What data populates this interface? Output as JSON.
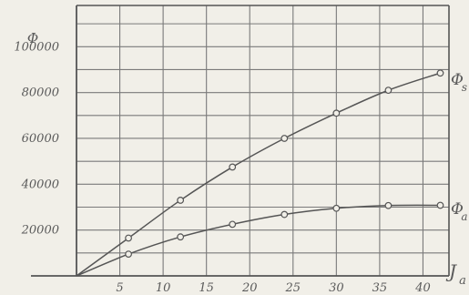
{
  "chart_data": {
    "type": "line",
    "title": "",
    "ylabel": "Φ",
    "xlabel": "J",
    "xlabel_sub": "a",
    "xlim": [
      0,
      43
    ],
    "ylim": [
      0,
      118000
    ],
    "x_ticks": [
      5,
      10,
      15,
      20,
      25,
      30,
      35,
      40
    ],
    "y_ticks": [
      20000,
      40000,
      60000,
      80000,
      100000
    ],
    "x_tick_labels": [
      "5",
      "10",
      "15",
      "20",
      "25",
      "30",
      "35",
      "40"
    ],
    "y_tick_labels": [
      "20000",
      "40000",
      "60000",
      "80000",
      "100000"
    ],
    "grid": true,
    "series": [
      {
        "name": "Φ",
        "name_sub": "s",
        "x": [
          0,
          6,
          12,
          18,
          24,
          30,
          36,
          42
        ],
        "y": [
          0,
          16500,
          33000,
          47500,
          60000,
          71000,
          81000,
          88500
        ]
      },
      {
        "name": "Φ",
        "name_sub": "a",
        "x": [
          0,
          6,
          12,
          18,
          24,
          30,
          36,
          42
        ],
        "y": [
          0,
          9500,
          17000,
          22500,
          26800,
          29500,
          30700,
          30800
        ]
      }
    ]
  }
}
